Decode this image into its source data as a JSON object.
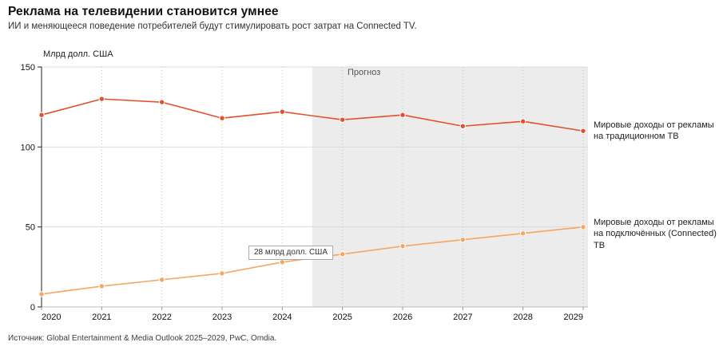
{
  "header": {
    "title": "Реклама на телевидении становится умнее",
    "subtitle": "ИИ и меняющееся поведение потребителей будут стимулировать рост затрат на Connected TV."
  },
  "footer": {
    "source": "Источник: Global Entertainment & Media Outlook 2025–2029, PwC, Omdia."
  },
  "chart_data": {
    "type": "line",
    "x": [
      2020,
      2021,
      2022,
      2023,
      2024,
      2025,
      2026,
      2027,
      2028,
      2029
    ],
    "series": [
      {
        "name": "Мировые доходы от рекламы на традиционном ТВ",
        "color": "#e2502d",
        "values": [
          120,
          130,
          128,
          118,
          122,
          117,
          120,
          113,
          116,
          110
        ]
      },
      {
        "name": "Мировые доходы от рекламы на подключённых (Connected) ТВ",
        "color": "#f7a560",
        "values": [
          8,
          13,
          17,
          21,
          28,
          33,
          38,
          42,
          46,
          50
        ]
      }
    ],
    "ylabel": "Млрд долл. США",
    "yticks": [
      0,
      50,
      100,
      150
    ],
    "ylim": [
      0,
      150
    ],
    "grid": true,
    "legend_position": "right",
    "forecast": {
      "label": "Прогноз",
      "start": 2024.5,
      "end": 2029,
      "band_color": "#ececec"
    },
    "annotation": {
      "text": "28 млрд долл. США",
      "x": 2024,
      "y": 28
    }
  }
}
